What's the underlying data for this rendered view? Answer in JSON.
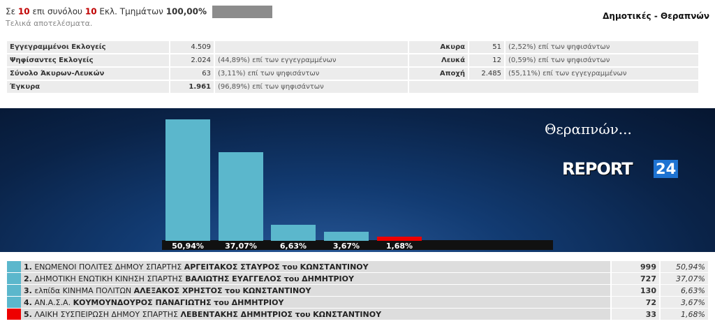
{
  "header": {
    "prefix": "Σε",
    "counted": "10",
    "middle": "επι συνόλου",
    "total": "10",
    "suffix": "Εκλ. Τμημάτων",
    "percent": "100,00%",
    "progress": 1.0,
    "subtitle": "Τελικά αποτελέσματα.",
    "title": "Δημοτικές - Θεραπνών"
  },
  "stats": [
    {
      "label": "Εγγεγραμμένοι Εκλογείς",
      "value": "4.509",
      "desc": "",
      "label2": "Ακυρα",
      "value2": "51",
      "desc2": "(2,52%) επί των ψηφισάντων"
    },
    {
      "label": "Ψηφίσαντες Εκλογείς",
      "value": "2.024",
      "desc": "(44,89%) επί των εγγεγραμμένων",
      "label2": "Λευκά",
      "value2": "12",
      "desc2": "(0,59%) επί των ψηφισάντων"
    },
    {
      "label": "Σύνολο Άκυρων-Λευκών",
      "value": "63",
      "desc": "(3,11%) επί των ψηφισάντων",
      "label2": "Αποχή",
      "value2": "2.485",
      "desc2": "(55,11%) επί των εγγεγραμμένων"
    },
    {
      "label": "Έγκυρα",
      "value": "1.961",
      "desc": "(96,89%) επί των ψηφισάντων"
    }
  ],
  "banner": {
    "place": "Θεραπνών...",
    "logo_word": "REPORT",
    "logo_num": "24"
  },
  "chart_data": {
    "type": "bar",
    "categories": [
      "1",
      "2",
      "3",
      "4",
      "5"
    ],
    "values": [
      50.94,
      37.07,
      6.63,
      3.67,
      1.68
    ],
    "labels": [
      "50,94%",
      "37,07%",
      "6,63%",
      "3,67%",
      "1,68%"
    ],
    "colors": [
      "#5bb7cc",
      "#5bb7cc",
      "#5bb7cc",
      "#5bb7cc",
      "#ee0000"
    ],
    "ylim": [
      0,
      50.94
    ]
  },
  "results": [
    {
      "rank": "1.",
      "party": "ΕΝΩΜΕΝΟΙ ΠΟΛΙΤΕΣ ΔΗΜΟΥ ΣΠΑΡΤΗΣ",
      "candidate": "ΑΡΓΕΙΤΑΚΟΣ ΣΤΑΥΡΟΣ",
      "of": "του",
      "father": "ΚΩΝΣΤΑΝΤΙΝΟΥ",
      "votes": "999",
      "pct": "50,94%",
      "color": "#5bb7cc"
    },
    {
      "rank": "2.",
      "party": "ΔΗΜΟΤΙΚΗ ΕΝΩΤΙΚΗ ΚΙΝΗΣΗ ΣΠΑΡΤΗΣ",
      "candidate": "ΒΑΛΙΩΤΗΣ ΕΥΑΓΓΕΛΟΣ",
      "of": "του",
      "father": "ΔΗΜΗΤΡΙΟΥ",
      "votes": "727",
      "pct": "37,07%",
      "color": "#5bb7cc"
    },
    {
      "rank": "3.",
      "party": "ελπίδα ΚΙΝΗΜΑ ΠΟΛΙΤΩΝ",
      "candidate": "ΑΛΕΞΑΚΟΣ ΧΡΗΣΤΟΣ",
      "of": "του",
      "father": "ΚΩΝΣΤΑΝΤΙΝΟΥ",
      "votes": "130",
      "pct": "6,63%",
      "color": "#5bb7cc"
    },
    {
      "rank": "4.",
      "party": "ΑΝ.Α.Σ.Α.",
      "candidate": "ΚΟΥΜΟΥΝΔΟΥΡΟΣ ΠΑΝΑΓΙΩΤΗΣ",
      "of": "του",
      "father": "ΔΗΜΗΤΡΙΟΥ",
      "votes": "72",
      "pct": "3,67%",
      "color": "#5bb7cc"
    },
    {
      "rank": "5.",
      "party": "ΛΑΙΚΗ ΣΥΣΠΕΙΡΩΣΗ ΔΗΜΟΥ ΣΠΑΡΤΗΣ",
      "candidate": "ΛΕΒΕΝΤΑΚΗΣ ΔΗΜΗΤΡΙΟΣ",
      "of": "του",
      "father": "ΚΩΝΣΤΑΝΤΙΝΟΥ",
      "votes": "33",
      "pct": "1,68%",
      "color": "#ee0000"
    }
  ]
}
